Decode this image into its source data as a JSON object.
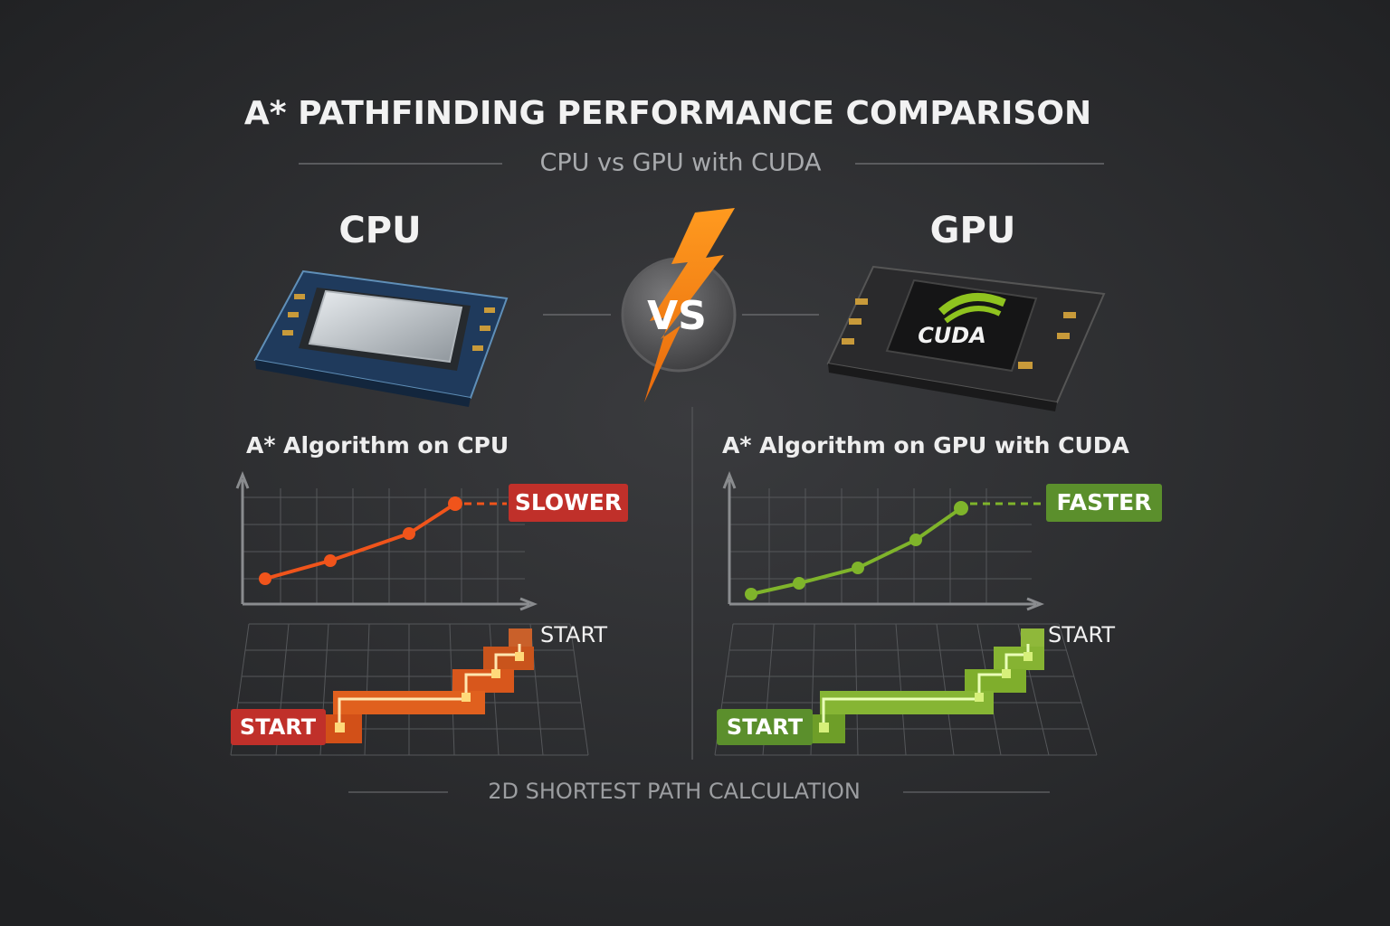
{
  "header": {
    "title": "A* PATHFINDING PERFORMANCE COMPARISON",
    "subtitle": "CPU vs GPU with CUDA"
  },
  "vs": "VS",
  "panels": [
    {
      "label": "CPU",
      "chart_title": "A* Algorithm on CPU",
      "badge": "SLOWER",
      "grid_labels": [
        "START",
        "START"
      ]
    },
    {
      "label": "GPU",
      "chip_label": "CUDA",
      "chart_title": "A* Algorithm on GPU with CUDA",
      "badge": "FASTER",
      "grid_labels": [
        "START",
        "START"
      ]
    }
  ],
  "footer": "2D SHORTEST PATH CALCULATION"
}
